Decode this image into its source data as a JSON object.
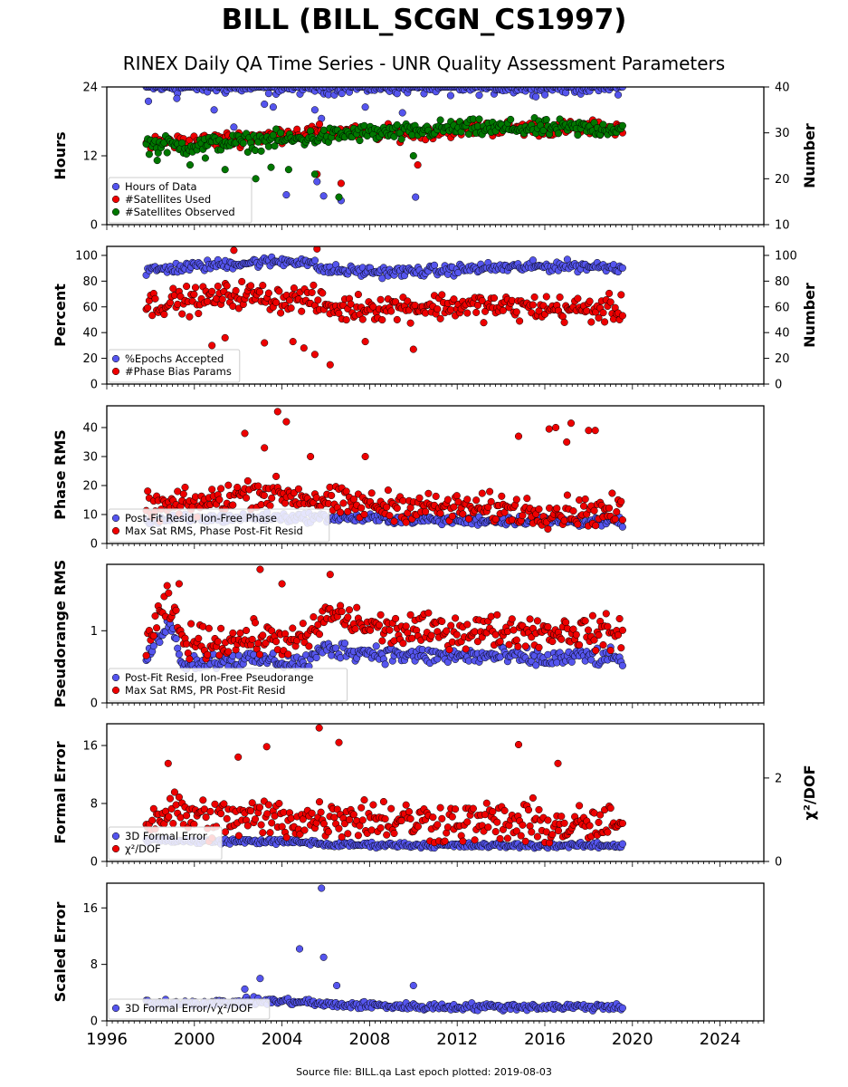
{
  "header": {
    "title": "BILL (BILL_SCGN_CS1997)",
    "subtitle": "RINEX Daily QA Time Series - UNR Quality Assessment Parameters"
  },
  "footer": {
    "text": "Source file: BILL.qa Last epoch plotted: 2019-08-03"
  },
  "colors": {
    "blue": "#5555ee",
    "red": "#ee0000",
    "green": "#007700"
  },
  "chart_data": [
    {
      "type": "scatter",
      "ylabel": "Hours",
      "y2label": "Number",
      "xlim": [
        1996,
        2026
      ],
      "ylim": [
        0,
        24
      ],
      "y2lim": [
        10,
        40
      ],
      "yticks": [
        0,
        12,
        24
      ],
      "y2ticks": [
        10,
        20,
        30,
        40
      ],
      "legend_position": "lower-left",
      "series": [
        {
          "name": "Hours of Data",
          "axis": "left",
          "color": "blue",
          "x": [
            1997.8,
            1998.3,
            1999.0,
            1999.6,
            2000.3,
            2001.0,
            2001.7,
            2002.5,
            2003.3,
            2004.2,
            2005.1,
            2005.8,
            2006.6,
            2007.5,
            2008.4,
            2009.3,
            2010.5,
            2012.0,
            2014.0,
            2016.0,
            2018.0,
            2019.55
          ],
          "y": [
            24,
            24,
            24,
            24,
            24,
            24,
            24,
            24,
            24,
            24,
            24,
            24,
            24,
            24,
            24,
            24,
            24,
            24,
            24,
            24,
            24,
            24
          ],
          "outliers": [
            [
              1997.9,
              21.5
            ],
            [
              1999.2,
              22.0
            ],
            [
              2000.9,
              20.0
            ],
            [
              2001.8,
              17.0
            ],
            [
              2002.6,
              15.0
            ],
            [
              2003.2,
              21.0
            ],
            [
              2003.6,
              20.5
            ],
            [
              2004.2,
              5.2
            ],
            [
              2005.5,
              20.0
            ],
            [
              2005.8,
              18.5
            ],
            [
              2005.6,
              7.5
            ],
            [
              2005.9,
              5.0
            ],
            [
              2006.7,
              4.2
            ],
            [
              2007.8,
              20.5
            ],
            [
              2009.5,
              19.5
            ],
            [
              2010.1,
              4.8
            ],
            [
              2011.7,
              22.5
            ]
          ]
        },
        {
          "name": "#Satellites Used",
          "axis": "right",
          "color": "red",
          "x": [
            1997.8,
            2000.0,
            2002.5,
            2005.0,
            2007.5,
            2010.0,
            2012.5,
            2015.0,
            2017.5,
            2019.55
          ],
          "y": [
            28,
            28,
            29,
            30,
            30,
            30,
            31,
            31,
            31,
            31
          ],
          "outliers": [
            [
              2005.6,
              21.0
            ],
            [
              2006.7,
              19.0
            ],
            [
              2010.2,
              23.0
            ]
          ]
        },
        {
          "name": "#Satellites Observed",
          "axis": "right",
          "color": "green",
          "x": [
            1997.8,
            1998.5,
            1999.5,
            2000.5,
            2001.5,
            2002.5,
            2003.5,
            2004.5,
            2005.5,
            2006.5,
            2007.5,
            2008.5,
            2009.5,
            2010.5,
            2011.5,
            2012.5,
            2013.5,
            2014.5,
            2015.5,
            2016.5,
            2017.5,
            2018.5,
            2019.55
          ],
          "y": [
            27.5,
            27.5,
            27,
            27.5,
            28,
            28,
            28.5,
            28.5,
            29,
            29.5,
            30,
            30,
            30,
            30.5,
            31,
            31,
            31,
            31,
            31,
            31,
            31,
            31,
            31
          ],
          "outliers": [
            [
              1998.3,
              24.0
            ],
            [
              1999.8,
              23.0
            ],
            [
              2000.5,
              24.5
            ],
            [
              2001.4,
              22.0
            ],
            [
              2002.8,
              20.0
            ],
            [
              2003.5,
              22.5
            ],
            [
              2004.3,
              22.0
            ],
            [
              2005.5,
              21.0
            ],
            [
              2006.6,
              16.0
            ],
            [
              2010.0,
              25.0
            ]
          ]
        }
      ]
    },
    {
      "type": "scatter",
      "ylabel": "Percent",
      "y2label": "Number",
      "xlim": [
        1996,
        2026
      ],
      "ylim": [
        0,
        107
      ],
      "y2lim": [
        0,
        107
      ],
      "yticks": [
        0,
        20,
        40,
        60,
        80,
        100
      ],
      "y2ticks": [
        0,
        20,
        40,
        60,
        80,
        100
      ],
      "legend_position": "lower-left",
      "series": [
        {
          "name": "%Epochs Accepted",
          "axis": "left",
          "color": "blue",
          "x": [
            1997.8,
            1999.0,
            2000.5,
            2002.0,
            2003.5,
            2005.0,
            2005.9,
            2007.0,
            2009.0,
            2011.0,
            2013.0,
            2015.0,
            2017.0,
            2019.55
          ],
          "y": [
            88,
            90,
            92,
            94,
            95,
            96,
            89,
            88,
            87,
            88,
            90,
            91,
            92,
            91
          ],
          "outliers": []
        },
        {
          "name": "#Phase Bias Params",
          "axis": "right",
          "color": "red",
          "x": [
            1997.8,
            1999.0,
            2000.5,
            2002.0,
            2003.0,
            2004.0,
            2005.0,
            2006.5,
            2008.0,
            2010.0,
            2012.0,
            2014.0,
            2016.0,
            2018.0,
            2019.55
          ],
          "y": [
            62,
            64,
            66,
            70,
            68,
            66,
            67,
            58,
            60,
            60,
            61,
            60,
            59,
            58,
            58
          ],
          "outliers": [
            [
              2000.8,
              30.0
            ],
            [
              2001.4,
              36.0
            ],
            [
              2001.8,
              104.0
            ],
            [
              2003.2,
              32.0
            ],
            [
              2004.5,
              33.0
            ],
            [
              2005.0,
              28.0
            ],
            [
              2005.5,
              23.0
            ],
            [
              2005.6,
              105.0
            ],
            [
              2006.2,
              15.0
            ],
            [
              2007.8,
              33.0
            ],
            [
              2010.0,
              27.0
            ]
          ]
        }
      ]
    },
    {
      "type": "scatter",
      "ylabel": "Phase RMS",
      "xlim": [
        1996,
        2026
      ],
      "ylim": [
        0,
        47.5
      ],
      "yticks": [
        0,
        10,
        20,
        30,
        40
      ],
      "legend_position": "lower-left",
      "series": [
        {
          "name": "Post-Fit Resid, Ion-Free Phase",
          "axis": "left",
          "color": "blue",
          "x": [
            1997.8,
            2000.0,
            2003.0,
            2006.0,
            2009.0,
            2012.0,
            2015.0,
            2018.0,
            2019.55
          ],
          "y": [
            8,
            8.5,
            9,
            9,
            8.5,
            8,
            8,
            7.5,
            7.5
          ],
          "outliers": []
        },
        {
          "name": "Max Sat RMS, Phase Post-Fit Resid",
          "axis": "left",
          "color": "red",
          "x": [
            1997.8,
            1999.0,
            2000.5,
            2002.0,
            2003.0,
            2004.0,
            2005.0,
            2006.5,
            2008.0,
            2010.0,
            2012.0,
            2014.0,
            2016.0,
            2018.0,
            2019.55
          ],
          "y": [
            12,
            13,
            14,
            17,
            18,
            17,
            16,
            14,
            13,
            13,
            12,
            12,
            11,
            11,
            11
          ],
          "outliers": [
            [
              2002.3,
              38.0
            ],
            [
              2003.2,
              33.0
            ],
            [
              2003.8,
              45.5
            ],
            [
              2004.2,
              42.0
            ],
            [
              2005.3,
              30.0
            ],
            [
              2007.8,
              30.0
            ],
            [
              2014.8,
              37.0
            ],
            [
              2016.2,
              39.5
            ],
            [
              2016.5,
              40.0
            ],
            [
              2017.0,
              35.0
            ],
            [
              2017.2,
              41.5
            ],
            [
              2018.0,
              39.0
            ],
            [
              2018.3,
              39.0
            ]
          ]
        }
      ]
    },
    {
      "type": "scatter",
      "ylabel": "Pseudorange RMS",
      "xlim": [
        1996,
        2026
      ],
      "ylim": [
        0,
        1.92
      ],
      "yticks": [
        0,
        1
      ],
      "legend_position": "lower-left",
      "series": [
        {
          "name": "Post-Fit Resid, Ion-Free Pseudorange",
          "axis": "left",
          "color": "blue",
          "x": [
            1997.8,
            1998.8,
            1999.5,
            2001.0,
            2003.0,
            2005.0,
            2006.0,
            2008.0,
            2010.0,
            2012.0,
            2014.0,
            2016.0,
            2018.0,
            2019.55
          ],
          "y": [
            0.6,
            1.15,
            0.55,
            0.6,
            0.6,
            0.55,
            0.75,
            0.7,
            0.65,
            0.65,
            0.65,
            0.6,
            0.65,
            0.6
          ],
          "outliers": []
        },
        {
          "name": "Max Sat RMS, PR Post-Fit Resid",
          "axis": "left",
          "color": "red",
          "x": [
            1997.8,
            1998.8,
            1999.5,
            2001.0,
            2003.0,
            2005.0,
            2006.2,
            2007.5,
            2009.0,
            2011.0,
            2013.0,
            2015.0,
            2017.0,
            2019.55
          ],
          "y": [
            0.8,
            1.4,
            0.85,
            0.85,
            0.9,
            0.85,
            1.25,
            1.1,
            1.0,
            1.0,
            1.0,
            1.0,
            1.0,
            0.95
          ],
          "outliers": [
            [
              2003.0,
              1.85
            ],
            [
              2004.0,
              1.65
            ],
            [
              2006.2,
              1.78
            ],
            [
              1999.3,
              1.65
            ]
          ]
        }
      ]
    },
    {
      "type": "scatter",
      "ylabel": "Formal Error",
      "y2label": "χ²/DOF",
      "xlim": [
        1996,
        2026
      ],
      "ylim": [
        0,
        19
      ],
      "y2lim": [
        0,
        3.3
      ],
      "yticks": [
        0,
        8,
        16
      ],
      "y2ticks": [
        0,
        2
      ],
      "legend_position": "lower-left",
      "series": [
        {
          "name": "3D Formal Error",
          "axis": "left",
          "color": "blue",
          "x": [
            1997.8,
            2000.0,
            2003.0,
            2005.5,
            2006.0,
            2009.0,
            2012.0,
            2015.0,
            2018.0,
            2019.55
          ],
          "y": [
            3,
            2.8,
            2.8,
            2.6,
            2.3,
            2.3,
            2.2,
            2.2,
            2.2,
            2.2
          ],
          "outliers": []
        },
        {
          "name": "χ²/DOF",
          "axis": "right",
          "color": "red",
          "x": [
            1997.8,
            1999.0,
            2001.0,
            2003.0,
            2005.0,
            2007.0,
            2009.0,
            2011.0,
            2013.0,
            2015.0,
            2017.0,
            2019.55
          ],
          "y": [
            1.0,
            1.2,
            1.0,
            1.05,
            1.0,
            1.1,
            1.0,
            0.95,
            0.95,
            0.9,
            0.85,
            0.85
          ],
          "outliers": [
            [
              2002.0,
              2.5
            ],
            [
              2003.3,
              2.75
            ],
            [
              2005.7,
              3.2
            ],
            [
              2006.6,
              2.85
            ],
            [
              2014.8,
              2.8
            ],
            [
              2016.6,
              2.35
            ],
            [
              1998.8,
              2.35
            ]
          ]
        }
      ]
    },
    {
      "type": "scatter",
      "ylabel": "Scaled Error",
      "xlim": [
        1996,
        2026
      ],
      "ylim": [
        0,
        19.5
      ],
      "yticks": [
        0,
        8,
        16
      ],
      "legend_position": "lower-left",
      "xticks": [
        1996,
        2000,
        2004,
        2008,
        2012,
        2016,
        2020,
        2024
      ],
      "series": [
        {
          "name": "3D Formal Error/√χ²/DOF",
          "axis": "left",
          "color": "blue",
          "x": [
            1997.8,
            1999.0,
            2001.0,
            2003.0,
            2005.0,
            2006.0,
            2008.0,
            2010.0,
            2012.0,
            2014.0,
            2016.0,
            2018.0,
            2019.55
          ],
          "y": [
            2.5,
            2.6,
            2.5,
            2.8,
            2.7,
            2.3,
            2.2,
            2.0,
            2.0,
            2.0,
            2.0,
            2.0,
            2.0
          ],
          "outliers": [
            [
              2003.0,
              6.0
            ],
            [
              2004.8,
              10.2
            ],
            [
              2005.8,
              18.8
            ],
            [
              2005.9,
              9.0
            ],
            [
              2006.5,
              5.0
            ],
            [
              2010.0,
              5.0
            ],
            [
              2002.3,
              4.5
            ]
          ]
        }
      ]
    }
  ]
}
